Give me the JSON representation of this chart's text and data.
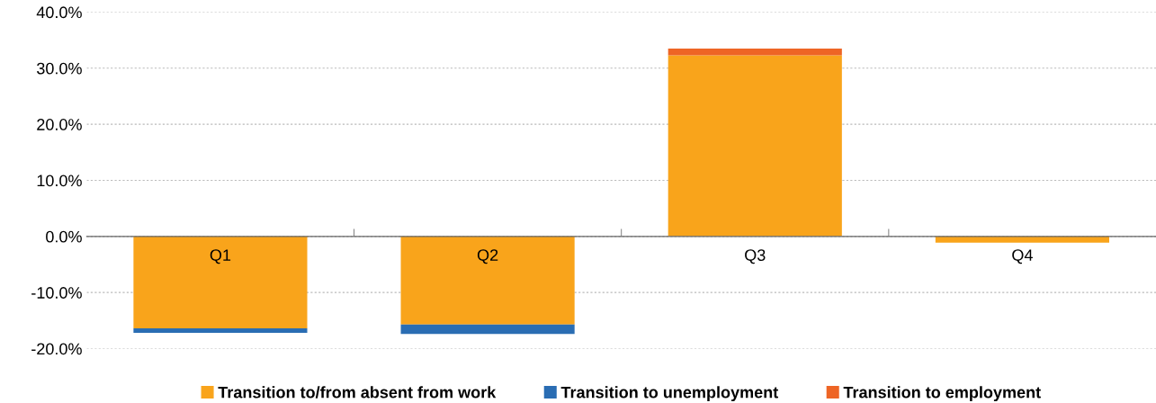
{
  "chart_data": {
    "type": "bar",
    "stacked": true,
    "categories": [
      "Q1",
      "Q2",
      "Q3",
      "Q4"
    ],
    "series": [
      {
        "name": "Transition to/from absent from work",
        "color": "#f9a41b",
        "values": [
          -16.4,
          -15.7,
          32.3,
          -1.1
        ]
      },
      {
        "name": "Transition to unemployment",
        "color": "#2a6db3",
        "values": [
          -0.8,
          -1.7,
          0,
          0
        ]
      },
      {
        "name": "Transition to employment",
        "color": "#ee6525",
        "values": [
          0,
          0,
          1.2,
          0
        ]
      }
    ],
    "ylim": [
      -20,
      40
    ],
    "yticks": [
      {
        "value": -20,
        "label": "-20.0%"
      },
      {
        "value": -10,
        "label": "-10.0%"
      },
      {
        "value": 0,
        "label": "0.0%"
      },
      {
        "value": 10,
        "label": "10.0%"
      },
      {
        "value": 20,
        "label": "20.0%"
      },
      {
        "value": 30,
        "label": "30.0%"
      },
      {
        "value": 40,
        "label": "40.0%"
      }
    ],
    "grid": "y",
    "legend": "bottom"
  }
}
